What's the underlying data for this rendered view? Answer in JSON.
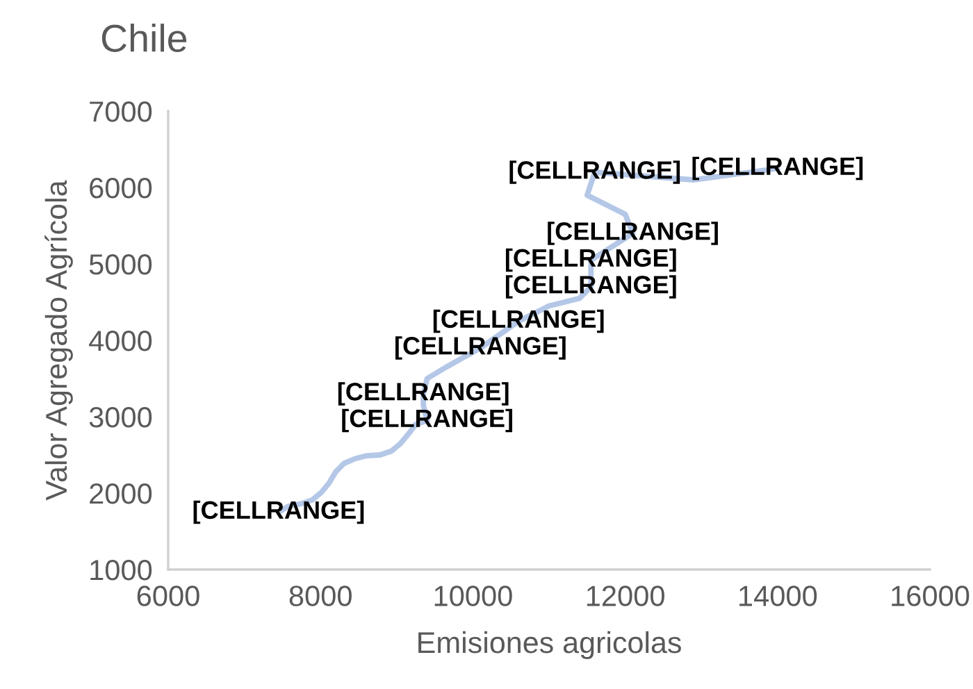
{
  "chart_data": {
    "type": "line",
    "title": "Chile",
    "xlabel": "Emisiones agricolas",
    "ylabel": "Valor Agregado Agrícola",
    "xlim": [
      6000,
      16000
    ],
    "xticks": [
      6000,
      8000,
      10000,
      12000,
      14000,
      16000
    ],
    "ylim": [
      1000,
      7000
    ],
    "yticks": [
      1000,
      2000,
      3000,
      4000,
      5000,
      6000,
      7000
    ],
    "series": [
      {
        "color": "#b4c7e7",
        "x": [
          7450,
          7580,
          7740,
          7890,
          8010,
          8110,
          8200,
          8310,
          8450,
          8610,
          8780,
          8930,
          9050,
          9150,
          9250,
          9400,
          9350,
          9350,
          9400,
          9650,
          10100,
          10600,
          11000,
          11400,
          11550,
          11550,
          12100,
          12000,
          11500,
          11600,
          12900,
          14000
        ],
        "values": [
          1750,
          1830,
          1860,
          1910,
          2010,
          2130,
          2280,
          2390,
          2450,
          2490,
          2500,
          2550,
          2650,
          2770,
          2900,
          2950,
          3150,
          3300,
          3500,
          3650,
          3900,
          4250,
          4450,
          4550,
          4700,
          5050,
          5400,
          5650,
          5900,
          6200,
          6100,
          6250
        ],
        "value_labels": [
          "[CELLRANGE]",
          null,
          null,
          null,
          null,
          null,
          null,
          null,
          null,
          null,
          null,
          null,
          null,
          null,
          null,
          "[CELLRANGE]",
          null,
          "[CELLRANGE]",
          null,
          null,
          "[CELLRANGE]",
          "[CELLRANGE]",
          null,
          null,
          "[CELLRANGE]",
          "[CELLRANGE]",
          "[CELLRANGE]",
          null,
          null,
          "[CELLRANGE]",
          null,
          "[CELLRANGE]"
        ]
      }
    ]
  }
}
